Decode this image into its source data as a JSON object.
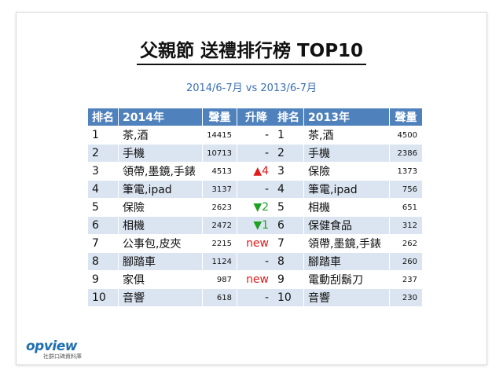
{
  "title": "父親節 送禮排行榜 TOP10",
  "subtitle": "2014/6-7月 vs 2013/6-7月",
  "table2014": {
    "headers": [
      "排名",
      "2014年",
      "聲量",
      "升降"
    ],
    "rows": [
      {
        "rank": "1",
        "item": "茶,酒",
        "volume": "14415",
        "change": "-",
        "change_type": "none"
      },
      {
        "rank": "2",
        "item": "手機",
        "volume": "10713",
        "change": "-",
        "change_type": "none"
      },
      {
        "rank": "3",
        "item": "領帶,墨鏡,手錶",
        "volume": "4513",
        "change": "▲4",
        "change_type": "up"
      },
      {
        "rank": "4",
        "item": "筆電,ipad",
        "volume": "3137",
        "change": "-",
        "change_type": "none"
      },
      {
        "rank": "5",
        "item": "保險",
        "volume": "2623",
        "change": "▼2",
        "change_type": "down"
      },
      {
        "rank": "6",
        "item": "相機",
        "volume": "2472",
        "change": "▼1",
        "change_type": "down"
      },
      {
        "rank": "7",
        "item": "公事包,皮夾",
        "volume": "2215",
        "change": "new",
        "change_type": "new"
      },
      {
        "rank": "8",
        "item": "腳踏車",
        "volume": "1124",
        "change": "-",
        "change_type": "none"
      },
      {
        "rank": "9",
        "item": "家俱",
        "volume": "987",
        "change": "new",
        "change_type": "new"
      },
      {
        "rank": "10",
        "item": "音響",
        "volume": "618",
        "change": "-",
        "change_type": "none"
      }
    ]
  },
  "table2013": {
    "headers": [
      "排名",
      "2013年",
      "聲量"
    ],
    "rows": [
      {
        "rank": "1",
        "item": "茶,酒",
        "volume": "4500"
      },
      {
        "rank": "2",
        "item": "手機",
        "volume": "2386"
      },
      {
        "rank": "3",
        "item": "保險",
        "volume": "1373"
      },
      {
        "rank": "4",
        "item": "筆電,ipad",
        "volume": "756"
      },
      {
        "rank": "5",
        "item": "相機",
        "volume": "651"
      },
      {
        "rank": "6",
        "item": "保健食品",
        "volume": "312"
      },
      {
        "rank": "7",
        "item": "領帶,墨鏡,手錶",
        "volume": "262"
      },
      {
        "rank": "8",
        "item": "腳踏車",
        "volume": "260"
      },
      {
        "rank": "9",
        "item": "電動刮鬍刀",
        "volume": "237"
      },
      {
        "rank": "10",
        "item": "音響",
        "volume": "230"
      }
    ]
  },
  "logo": {
    "name": "opview",
    "tagline": "社群口碑資料庫"
  },
  "colors": {
    "header": "#4f81bd",
    "stripe": "#dbe5f1",
    "up": "#e11b1b",
    "down": "#1ea024",
    "subtitle": "#3a6fb7"
  }
}
